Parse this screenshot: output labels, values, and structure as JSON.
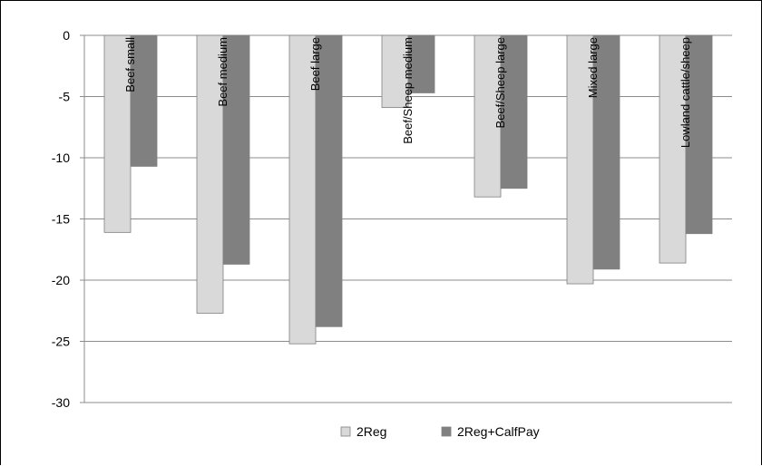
{
  "chart_data": {
    "type": "bar",
    "categories": [
      "Beef small",
      "Beef medium",
      "Beef large",
      "Beef/Sheep medium",
      "Beef/Sheep large",
      "Mixed large",
      "Lowland cattle/sheep"
    ],
    "series": [
      {
        "name": "2Reg",
        "values": [
          -16.1,
          -22.7,
          -25.2,
          -5.9,
          -13.2,
          -20.3,
          -18.6
        ],
        "color": "#d9d9d9"
      },
      {
        "name": "2Reg+CalfPay",
        "values": [
          -10.7,
          -18.7,
          -23.8,
          -4.7,
          -12.5,
          -19.1,
          -16.2
        ],
        "color": "#808080"
      }
    ],
    "ylim": [
      -30,
      0
    ],
    "yticks": [
      0,
      -5,
      -10,
      -15,
      -20,
      -25,
      -30
    ],
    "grid": true,
    "legend_position": "bottom",
    "title": "",
    "xlabel": "",
    "ylabel": ""
  }
}
